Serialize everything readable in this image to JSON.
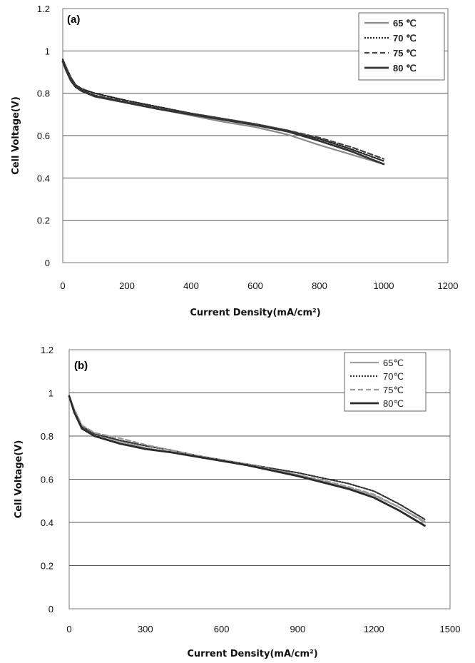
{
  "chart_data": [
    {
      "type": "line",
      "panel_label": "(a)",
      "xlabel": "Current Density(mA/cm²)",
      "ylabel": "Cell Voltage(V)",
      "xlim": [
        0,
        1200
      ],
      "ylim": [
        0,
        1.2
      ],
      "xticks": [
        "0",
        "200",
        "400",
        "600",
        "800",
        "1000",
        "1200"
      ],
      "yticks": [
        "0",
        "0.2",
        "0.4",
        "0.6",
        "0.8",
        "1",
        "1.2"
      ],
      "grid": "horizontal",
      "legend_position": "top-right",
      "series": [
        {
          "name": "65 ℃",
          "color": "#8a8a8a",
          "dash": "solid",
          "points": [
            [
              0,
              0.96
            ],
            [
              10,
              0.92
            ],
            [
              25,
              0.87
            ],
            [
              40,
              0.835
            ],
            [
              60,
              0.815
            ],
            [
              100,
              0.79
            ],
            [
              200,
              0.755
            ],
            [
              300,
              0.725
            ],
            [
              400,
              0.695
            ],
            [
              500,
              0.665
            ],
            [
              600,
              0.64
            ],
            [
              700,
              0.605
            ],
            [
              800,
              0.555
            ],
            [
              900,
              0.51
            ],
            [
              1000,
              0.465
            ]
          ]
        },
        {
          "name": "70 ℃",
          "color": "#222222",
          "dash": "dotted",
          "points": [
            [
              0,
              0.96
            ],
            [
              10,
              0.925
            ],
            [
              25,
              0.875
            ],
            [
              40,
              0.84
            ],
            [
              60,
              0.82
            ],
            [
              100,
              0.8
            ],
            [
              200,
              0.765
            ],
            [
              300,
              0.735
            ],
            [
              400,
              0.705
            ],
            [
              500,
              0.68
            ],
            [
              600,
              0.655
            ],
            [
              700,
              0.625
            ],
            [
              800,
              0.585
            ],
            [
              900,
              0.535
            ],
            [
              1000,
              0.48
            ]
          ]
        },
        {
          "name": "75 ℃",
          "color": "#444444",
          "dash": "dashed",
          "points": [
            [
              0,
              0.955
            ],
            [
              10,
              0.92
            ],
            [
              25,
              0.87
            ],
            [
              40,
              0.835
            ],
            [
              60,
              0.815
            ],
            [
              100,
              0.79
            ],
            [
              200,
              0.76
            ],
            [
              300,
              0.73
            ],
            [
              400,
              0.705
            ],
            [
              500,
              0.68
            ],
            [
              600,
              0.655
            ],
            [
              700,
              0.625
            ],
            [
              800,
              0.59
            ],
            [
              900,
              0.545
            ],
            [
              1000,
              0.49
            ]
          ]
        },
        {
          "name": "80 ℃",
          "color": "#333333",
          "dash": "solid-thick",
          "points": [
            [
              0,
              0.95
            ],
            [
              10,
              0.91
            ],
            [
              25,
              0.86
            ],
            [
              40,
              0.83
            ],
            [
              60,
              0.81
            ],
            [
              100,
              0.785
            ],
            [
              200,
              0.755
            ],
            [
              300,
              0.725
            ],
            [
              400,
              0.7
            ],
            [
              500,
              0.675
            ],
            [
              600,
              0.65
            ],
            [
              700,
              0.62
            ],
            [
              800,
              0.575
            ],
            [
              900,
              0.525
            ],
            [
              1000,
              0.465
            ]
          ]
        }
      ]
    },
    {
      "type": "line",
      "panel_label": "(b)",
      "xlabel": "Current Density(mA/cm²)",
      "ylabel": "Cell Voltage(V)",
      "xlim": [
        0,
        1500
      ],
      "ylim": [
        0,
        1.2
      ],
      "xticks": [
        "0",
        "300",
        "600",
        "900",
        "1200",
        "1500"
      ],
      "yticks": [
        "0",
        "0.2",
        "0.4",
        "0.6",
        "0.8",
        "1",
        "1.2"
      ],
      "grid": "horizontal",
      "legend_position": "top-right",
      "series": [
        {
          "name": "65℃",
          "color": "#a0a0a0",
          "dash": "solid",
          "points": [
            [
              0,
              0.985
            ],
            [
              20,
              0.92
            ],
            [
              50,
              0.845
            ],
            [
              100,
              0.81
            ],
            [
              200,
              0.775
            ],
            [
              300,
              0.745
            ],
            [
              400,
              0.725
            ],
            [
              500,
              0.705
            ],
            [
              600,
              0.685
            ],
            [
              700,
              0.665
            ],
            [
              800,
              0.645
            ],
            [
              900,
              0.62
            ],
            [
              1000,
              0.59
            ],
            [
              1100,
              0.56
            ],
            [
              1200,
              0.525
            ],
            [
              1300,
              0.47
            ],
            [
              1400,
              0.405
            ]
          ]
        },
        {
          "name": "70℃",
          "color": "#333333",
          "dash": "dotted",
          "points": [
            [
              0,
              0.985
            ],
            [
              20,
              0.92
            ],
            [
              50,
              0.845
            ],
            [
              100,
              0.81
            ],
            [
              200,
              0.78
            ],
            [
              300,
              0.755
            ],
            [
              400,
              0.735
            ],
            [
              500,
              0.71
            ],
            [
              600,
              0.69
            ],
            [
              700,
              0.67
            ],
            [
              800,
              0.65
            ],
            [
              900,
              0.63
            ],
            [
              1000,
              0.605
            ],
            [
              1100,
              0.58
            ],
            [
              1200,
              0.545
            ],
            [
              1300,
              0.485
            ],
            [
              1400,
              0.415
            ]
          ]
        },
        {
          "name": "75℃",
          "color": "#9a9a9a",
          "dash": "dashed",
          "points": [
            [
              0,
              0.985
            ],
            [
              20,
              0.925
            ],
            [
              50,
              0.85
            ],
            [
              100,
              0.815
            ],
            [
              200,
              0.79
            ],
            [
              300,
              0.76
            ],
            [
              400,
              0.735
            ],
            [
              500,
              0.71
            ],
            [
              600,
              0.69
            ],
            [
              700,
              0.67
            ],
            [
              800,
              0.645
            ],
            [
              900,
              0.62
            ],
            [
              1000,
              0.595
            ],
            [
              1100,
              0.565
            ],
            [
              1200,
              0.53
            ],
            [
              1300,
              0.47
            ],
            [
              1400,
              0.4
            ]
          ]
        },
        {
          "name": "80℃",
          "color": "#2a2a2a",
          "dash": "solid-thick",
          "points": [
            [
              0,
              0.985
            ],
            [
              20,
              0.91
            ],
            [
              50,
              0.835
            ],
            [
              100,
              0.8
            ],
            [
              200,
              0.765
            ],
            [
              300,
              0.74
            ],
            [
              400,
              0.725
            ],
            [
              500,
              0.705
            ],
            [
              600,
              0.685
            ],
            [
              700,
              0.665
            ],
            [
              800,
              0.64
            ],
            [
              900,
              0.615
            ],
            [
              1000,
              0.585
            ],
            [
              1100,
              0.555
            ],
            [
              1200,
              0.515
            ],
            [
              1300,
              0.455
            ],
            [
              1400,
              0.385
            ]
          ]
        }
      ]
    }
  ]
}
